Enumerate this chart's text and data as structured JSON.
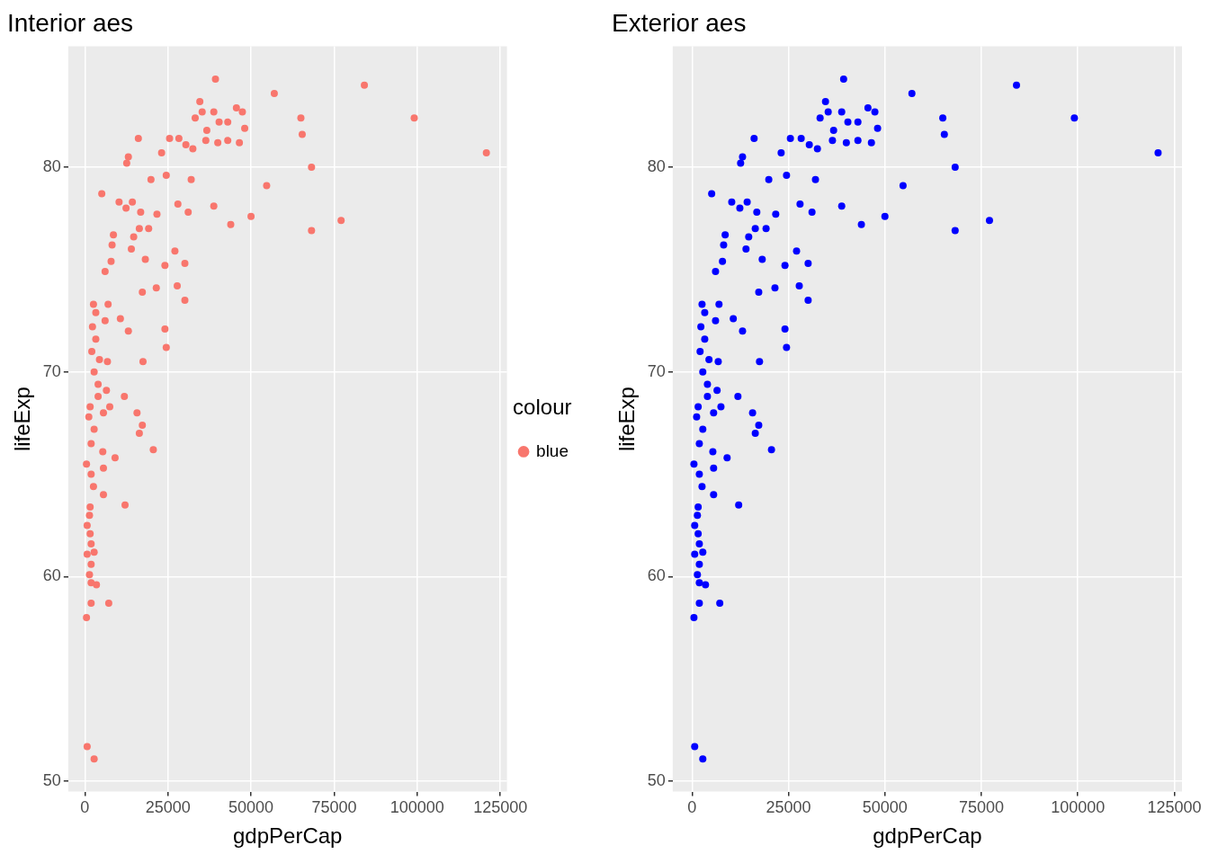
{
  "chart_data": [
    {
      "type": "scatter",
      "title": "Interior aes",
      "xlabel": "gdpPerCap",
      "ylabel": "lifeExp",
      "legend_title": "colour",
      "legend": "right",
      "grid": true,
      "marker": "circle",
      "xlim": [
        -5000,
        127000
      ],
      "ylim": [
        49.5,
        85.9
      ],
      "xticks": [
        0,
        25000,
        50000,
        75000,
        100000,
        125000
      ],
      "yticks": [
        50,
        60,
        70,
        80
      ],
      "series": [
        {
          "name": "blue",
          "color": "#f8766d",
          "x": [
            39300,
            84100,
            57000,
            34600,
            35300,
            38800,
            45600,
            47400,
            65000,
            99100,
            33200,
            43000,
            40400,
            48100,
            36700,
            65400,
            16100,
            25500,
            28300,
            36400,
            40000,
            43000,
            46500,
            30400,
            32500,
            120800,
            23100,
            13100,
            12600,
            68200,
            32000,
            24500,
            19900,
            54700,
            5100,
            14300,
            38800,
            28000,
            10300,
            12400,
            16800,
            31100,
            21700,
            50000,
            77100,
            43900,
            16400,
            19200,
            68200,
            8600,
            14700,
            8200,
            14000,
            27100,
            7900,
            18200,
            30100,
            24100,
            6100,
            27800,
            21500,
            17300,
            2600,
            7000,
            30100,
            3300,
            2300,
            6100,
            10700,
            24100,
            13100,
            3300,
            2100,
            24500,
            17500,
            6800,
            4400,
            2800,
            4000,
            6500,
            4000,
            11900,
            1600,
            7500,
            5600,
            15700,
            1200,
            17300,
            2800,
            16400,
            1900,
            20600,
            5400,
            9100,
            500,
            5600,
            1900,
            2600,
            5600,
            1600,
            12100,
            1400,
            700,
            1600,
            1900,
            700,
            2800,
            1900,
            1400,
            1900,
            3500,
            1900,
            7200,
            500,
            700,
            2800
          ],
          "values": [
            84.3,
            84.0,
            83.6,
            83.2,
            82.7,
            82.7,
            82.9,
            82.7,
            82.4,
            82.4,
            82.4,
            82.2,
            82.2,
            81.9,
            81.8,
            81.6,
            81.4,
            81.4,
            81.4,
            81.3,
            81.2,
            81.3,
            81.2,
            81.1,
            80.9,
            80.7,
            80.7,
            80.5,
            80.2,
            80.0,
            79.4,
            79.6,
            79.4,
            79.1,
            78.7,
            78.3,
            78.1,
            78.2,
            78.3,
            78.0,
            77.8,
            77.8,
            77.7,
            77.6,
            77.4,
            77.2,
            77.0,
            77.0,
            76.9,
            76.7,
            76.6,
            76.2,
            76.0,
            75.9,
            75.4,
            75.5,
            75.3,
            75.2,
            74.9,
            74.2,
            74.1,
            73.9,
            73.3,
            73.3,
            73.5,
            72.9,
            72.2,
            72.5,
            72.6,
            72.1,
            72.0,
            71.6,
            71.0,
            71.2,
            70.5,
            70.5,
            70.6,
            70.0,
            69.4,
            69.1,
            68.8,
            68.8,
            68.3,
            68.3,
            68.0,
            68.0,
            67.8,
            67.4,
            67.2,
            67.0,
            66.5,
            66.2,
            66.1,
            65.8,
            65.5,
            65.3,
            65.0,
            64.4,
            64.0,
            63.4,
            63.5,
            63.0,
            62.5,
            62.1,
            61.6,
            61.1,
            61.2,
            60.6,
            60.1,
            59.7,
            59.6,
            58.7,
            58.7,
            58.0,
            51.7,
            51.1
          ]
        }
      ]
    },
    {
      "type": "scatter",
      "title": "Exterior aes",
      "xlabel": "gdpPerCap",
      "ylabel": "lifeExp",
      "grid": true,
      "marker": "circle",
      "xlim": [
        -5000,
        127000
      ],
      "ylim": [
        49.5,
        85.9
      ],
      "xticks": [
        0,
        25000,
        50000,
        75000,
        100000,
        125000
      ],
      "yticks": [
        50,
        60,
        70,
        80
      ],
      "series": [
        {
          "color": "#0000ff",
          "x": [
            39300,
            84100,
            57000,
            34600,
            35300,
            38800,
            45600,
            47400,
            65000,
            99100,
            33200,
            43000,
            40400,
            48100,
            36700,
            65400,
            16100,
            25500,
            28300,
            36400,
            40000,
            43000,
            46500,
            30400,
            32500,
            120800,
            23100,
            13100,
            12600,
            68200,
            32000,
            24500,
            19900,
            54700,
            5100,
            14300,
            38800,
            28000,
            10300,
            12400,
            16800,
            31100,
            21700,
            50000,
            77100,
            43900,
            16400,
            19200,
            68200,
            8600,
            14700,
            8200,
            14000,
            27100,
            7900,
            18200,
            30100,
            24100,
            6100,
            27800,
            21500,
            17300,
            2600,
            7000,
            30100,
            3300,
            2300,
            6100,
            10700,
            24100,
            13100,
            3300,
            2100,
            24500,
            17500,
            6800,
            4400,
            2800,
            4000,
            6500,
            4000,
            11900,
            1600,
            7500,
            5600,
            15700,
            1200,
            17300,
            2800,
            16400,
            1900,
            20600,
            5400,
            9100,
            500,
            5600,
            1900,
            2600,
            5600,
            1600,
            12100,
            1400,
            700,
            1600,
            1900,
            700,
            2800,
            1900,
            1400,
            1900,
            3500,
            1900,
            7200,
            500,
            700,
            2800
          ],
          "values": [
            84.3,
            84.0,
            83.6,
            83.2,
            82.7,
            82.7,
            82.9,
            82.7,
            82.4,
            82.4,
            82.4,
            82.2,
            82.2,
            81.9,
            81.8,
            81.6,
            81.4,
            81.4,
            81.4,
            81.3,
            81.2,
            81.3,
            81.2,
            81.1,
            80.9,
            80.7,
            80.7,
            80.5,
            80.2,
            80.0,
            79.4,
            79.6,
            79.4,
            79.1,
            78.7,
            78.3,
            78.1,
            78.2,
            78.3,
            78.0,
            77.8,
            77.8,
            77.7,
            77.6,
            77.4,
            77.2,
            77.0,
            77.0,
            76.9,
            76.7,
            76.6,
            76.2,
            76.0,
            75.9,
            75.4,
            75.5,
            75.3,
            75.2,
            74.9,
            74.2,
            74.1,
            73.9,
            73.3,
            73.3,
            73.5,
            72.9,
            72.2,
            72.5,
            72.6,
            72.1,
            72.0,
            71.6,
            71.0,
            71.2,
            70.5,
            70.5,
            70.6,
            70.0,
            69.4,
            69.1,
            68.8,
            68.8,
            68.3,
            68.3,
            68.0,
            68.0,
            67.8,
            67.4,
            67.2,
            67.0,
            66.5,
            66.2,
            66.1,
            65.8,
            65.5,
            65.3,
            65.0,
            64.4,
            64.0,
            63.4,
            63.5,
            63.0,
            62.5,
            62.1,
            61.6,
            61.1,
            61.2,
            60.6,
            60.1,
            59.7,
            59.6,
            58.7,
            58.7,
            58.0,
            51.7,
            51.1
          ]
        }
      ]
    }
  ]
}
